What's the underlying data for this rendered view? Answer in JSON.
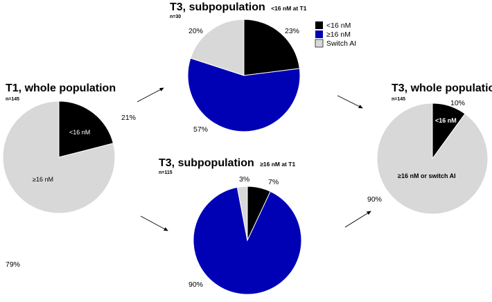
{
  "colors": {
    "black": "#000000",
    "blue": "#0000b4",
    "grey": "#d8d8d8",
    "arrow": "#000000"
  },
  "legend": [
    {
      "label": "<16 nM",
      "color": "#000000"
    },
    {
      "label": "≥16 nM",
      "color": "#0000b4"
    },
    {
      "label": "Switch AI",
      "color": "#d8d8d8"
    }
  ],
  "chart_data": [
    {
      "type": "pie",
      "title": "T1, whole population",
      "n_label": "n=145",
      "slices": [
        {
          "name": "<16 nM",
          "value": 21,
          "label": "21%",
          "inner_label": "<16 nM",
          "color": "#000000"
        },
        {
          "name": "≥16 nM",
          "value": 79,
          "label": "79%",
          "inner_label": "≥16 nM",
          "color": "#d8d8d8"
        }
      ]
    },
    {
      "type": "pie",
      "title": "T3, subpopulation",
      "title_suffix": "<16 nM at T1",
      "n_label": "n=30",
      "slices": [
        {
          "name": "<16 nM",
          "value": 23,
          "label": "23%",
          "color": "#000000"
        },
        {
          "name": "≥16 nM",
          "value": 57,
          "label": "57%",
          "color": "#0000b4"
        },
        {
          "name": "Switch AI",
          "value": 20,
          "label": "20%",
          "color": "#d8d8d8"
        }
      ]
    },
    {
      "type": "pie",
      "title": "T3, subpopulation",
      "title_suffix": "≥16 nM at T1",
      "n_label": "n=115",
      "slices": [
        {
          "name": "<16 nM",
          "value": 7,
          "label": "7%",
          "color": "#000000"
        },
        {
          "name": "≥16 nM",
          "value": 90,
          "label": "90%",
          "color": "#0000b4"
        },
        {
          "name": "Switch AI",
          "value": 3,
          "label": "3%",
          "color": "#d8d8d8"
        }
      ]
    },
    {
      "type": "pie",
      "title": "T3, whole population",
      "n_label": "n=145",
      "slices": [
        {
          "name": "<16 nM",
          "value": 10,
          "label": "10%",
          "inner_label": "<16 nM",
          "color": "#000000"
        },
        {
          "name": "≥16 nM or switch AI",
          "value": 90,
          "label": "90%",
          "inner_label": "≥16 nM or switch AI",
          "color": "#d8d8d8"
        }
      ]
    }
  ]
}
